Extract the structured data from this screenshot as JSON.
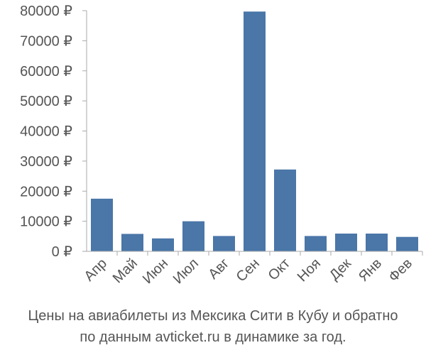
{
  "chart_data": {
    "type": "bar",
    "categories": [
      "Апр",
      "Май",
      "Июн",
      "Июл",
      "Авг",
      "Сен",
      "Окт",
      "Ноя",
      "Дек",
      "Янв",
      "Фев"
    ],
    "values": [
      17500,
      5800,
      4300,
      10000,
      5100,
      79700,
      27200,
      5100,
      5900,
      5900,
      4800
    ],
    "ylim": [
      0,
      80000
    ],
    "yticks": [
      0,
      10000,
      20000,
      30000,
      40000,
      50000,
      60000,
      70000,
      80000
    ],
    "ytick_labels": [
      "0 ₽",
      "10000 ₽",
      "20000 ₽",
      "30000 ₽",
      "40000 ₽",
      "50000 ₽",
      "60000 ₽",
      "70000 ₽",
      "80000 ₽"
    ],
    "bar_color": "#4a76a8",
    "axis_color": "#aaaaaa",
    "grid": false,
    "caption_line1": "Цены на авиабилеты из Мексика Сити в Кубу и обратно",
    "caption_line2": "по данным avticket.ru в динамике за год."
  }
}
